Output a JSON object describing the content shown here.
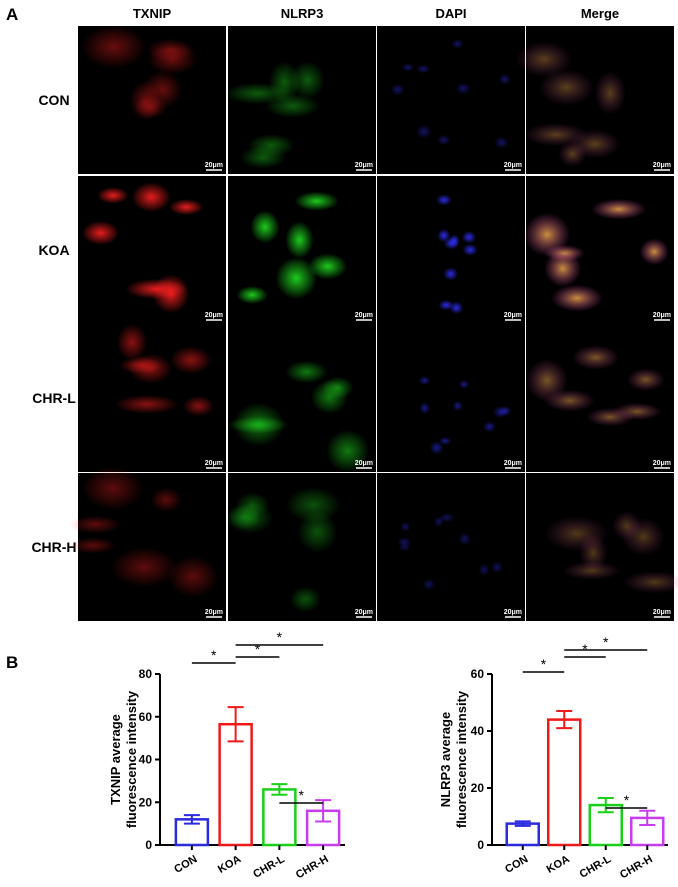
{
  "panel_a": {
    "label": "A",
    "columns": [
      "TXNIP",
      "NLRP3",
      "DAPI",
      "Merge"
    ],
    "rows": [
      "CON",
      "KOA",
      "CHR-L",
      "CHR-H"
    ],
    "scale_bar": "20μm"
  },
  "panel_b_label": "B",
  "chart_data": [
    {
      "type": "bar",
      "ylabel": [
        "TXNIP average",
        "fluorescence intensity"
      ],
      "categories": [
        "CON",
        "KOA",
        "CHR-L",
        "CHR-H"
      ],
      "values": [
        12,
        56.5,
        26,
        16
      ],
      "errors": [
        2,
        8,
        2.5,
        5
      ],
      "colors": [
        "#2a2ae0",
        "#f01818",
        "#18d018",
        "#c83cf0"
      ],
      "ylim": [
        0,
        80
      ],
      "yticks": [
        0,
        20,
        40,
        60,
        80
      ],
      "comparisons": [
        {
          "pair": [
            "CON",
            "KOA"
          ],
          "label": "*"
        },
        {
          "pair": [
            "KOA",
            "CHR-L"
          ],
          "label": "*"
        },
        {
          "pair": [
            "KOA",
            "CHR-H"
          ],
          "label": "*"
        },
        {
          "pair": [
            "CHR-L",
            "CHR-H"
          ],
          "label": "*"
        }
      ]
    },
    {
      "type": "bar",
      "ylabel": [
        "NLRP3 average",
        "fluorescence intensity"
      ],
      "categories": [
        "CON",
        "KOA",
        "CHR-L",
        "CHR-H"
      ],
      "values": [
        7.5,
        44,
        14,
        9.5
      ],
      "errors": [
        0.8,
        3,
        2.5,
        2.5
      ],
      "colors": [
        "#2a2ae0",
        "#f01818",
        "#18d018",
        "#c83cf0"
      ],
      "ylim": [
        0,
        60
      ],
      "yticks": [
        0,
        20,
        40,
        60
      ],
      "comparisons": [
        {
          "pair": [
            "CON",
            "KOA"
          ],
          "label": "*"
        },
        {
          "pair": [
            "KOA",
            "CHR-L"
          ],
          "label": "*"
        },
        {
          "pair": [
            "KOA",
            "CHR-H"
          ],
          "label": "*"
        },
        {
          "pair": [
            "CHR-L",
            "CHR-H"
          ],
          "label": "*"
        }
      ]
    }
  ]
}
